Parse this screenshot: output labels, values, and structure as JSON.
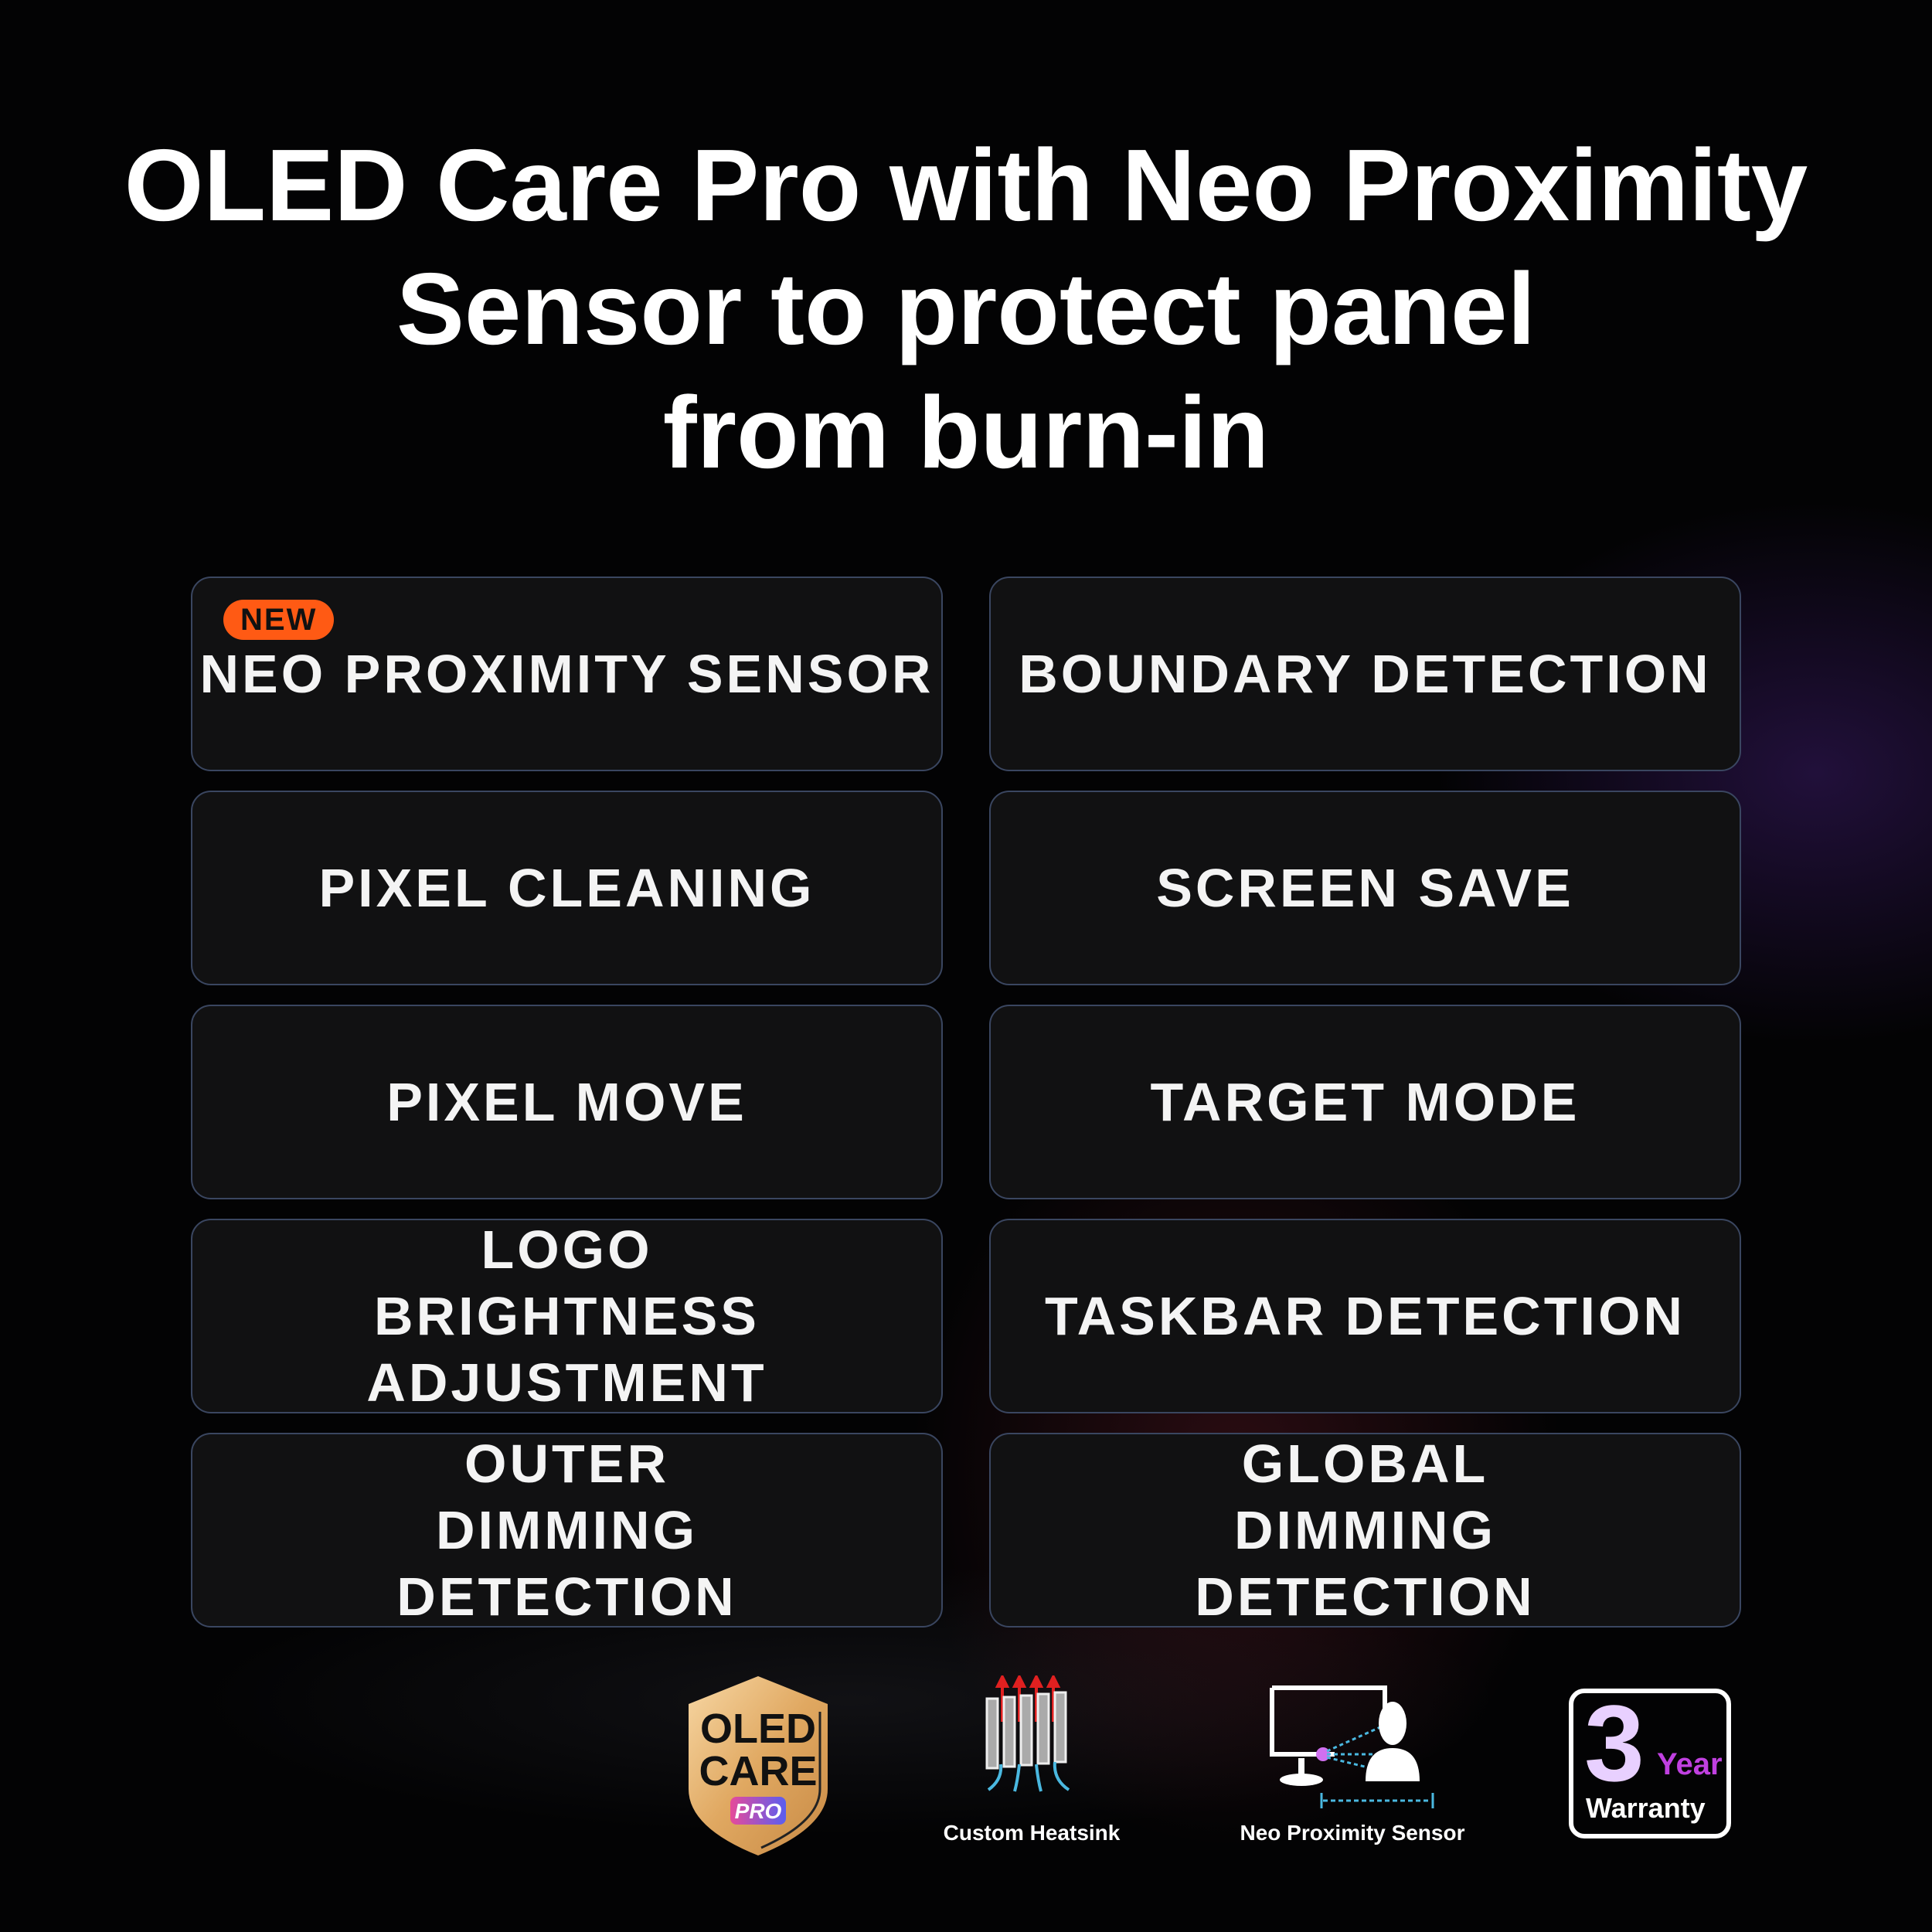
{
  "title": {
    "line1": "OLED Care Pro with Neo Proximity",
    "line2": "Sensor to protect panel",
    "line3": "from burn-in"
  },
  "features": [
    {
      "label": "NEO PROXIMITY SENSOR",
      "badge": "NEW"
    },
    {
      "label": "BOUNDARY DETECTION"
    },
    {
      "label": "PIXEL CLEANING"
    },
    {
      "label": "SCREEN SAVE"
    },
    {
      "label": "PIXEL MOVE"
    },
    {
      "label": "TARGET MODE"
    },
    {
      "label": "LOGO BRIGHTNESS ADJUSTMENT"
    },
    {
      "label": "TASKBAR DETECTION"
    },
    {
      "label": "OUTER DIMMING DETECTION"
    },
    {
      "label": "GLOBAL DIMMING DETECTION"
    }
  ],
  "badges": {
    "oled_care": {
      "line1": "OLED",
      "line2": "CARE",
      "tag": "PRO"
    },
    "heatsink": {
      "label": "Custom Heatsink"
    },
    "proximity": {
      "label": "Neo Proximity Sensor"
    },
    "warranty": {
      "number": "3",
      "unit": "Year",
      "label": "Warranty"
    }
  },
  "colors": {
    "badge_new": "#ff5a14",
    "card_border": "#3a4660",
    "card_bg": "#111112"
  }
}
